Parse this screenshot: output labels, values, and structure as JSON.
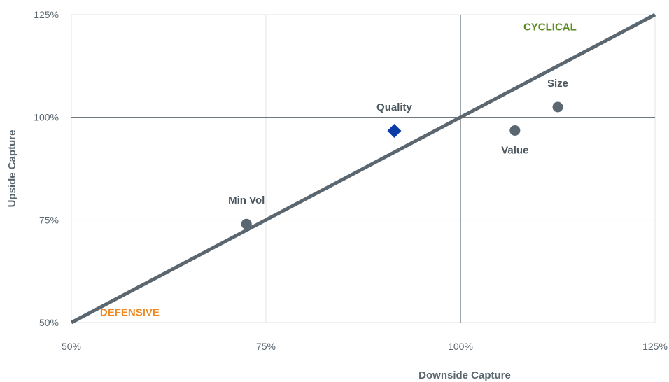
{
  "chart_data": {
    "type": "scatter",
    "xlabel": "Downside Capture",
    "ylabel": "Upside Capture",
    "xlim": [
      50,
      125
    ],
    "ylim": [
      50,
      125
    ],
    "x_ticks": [
      "50%",
      "75%",
      "100%",
      "125%"
    ],
    "y_ticks": [
      "50%",
      "75%",
      "100%",
      "125%"
    ],
    "x_tick_values": [
      50,
      75,
      100,
      125
    ],
    "y_tick_values": [
      50,
      75,
      100,
      125
    ],
    "grid": true,
    "reference_lines": {
      "x": 100,
      "y": 100
    },
    "parity_line": {
      "from": [
        50,
        50
      ],
      "to": [
        125,
        125
      ]
    },
    "points": [
      {
        "label": "Min Vol",
        "x": 72.5,
        "y": 74,
        "marker": "circle",
        "color": "#5b6770",
        "label_pos": "above"
      },
      {
        "label": "Quality",
        "x": 91.5,
        "y": 96.7,
        "marker": "diamond",
        "color": "#0a3ca8",
        "label_pos": "above"
      },
      {
        "label": "Value",
        "x": 107,
        "y": 96.8,
        "marker": "circle",
        "color": "#5b6770",
        "label_pos": "below"
      },
      {
        "label": "Size",
        "x": 112.5,
        "y": 102.5,
        "marker": "circle",
        "color": "#5b6770",
        "label_pos": "above"
      }
    ],
    "annotations": [
      {
        "text": "CYCLICAL",
        "x": 111.5,
        "y": 122,
        "color": "#5a8a1e"
      },
      {
        "text": "DEFENSIVE",
        "x": 57.5,
        "y": 52.5,
        "color": "#f08a24"
      }
    ]
  }
}
